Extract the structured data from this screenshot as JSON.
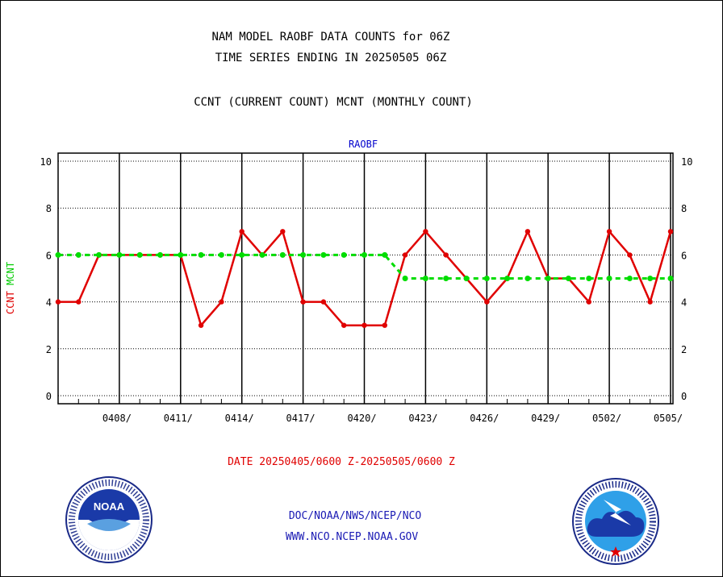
{
  "header": {
    "line1": "NAM MODEL RAOBF DATA COUNTS for 06Z",
    "line2": "TIME SERIES ENDING IN 20250505 06Z",
    "line3": "CCNT (CURRENT COUNT) MCNT (MONTHLY COUNT)"
  },
  "footer": {
    "date_range": "DATE 20250405/0600 Z-20250505/0600 Z",
    "credit_line1": "DOC/NOAA/NWS/NCEP/NCO",
    "credit_line2": "WWW.NCO.NCEP.NOAA.GOV",
    "logo_left": "NOAA",
    "logo_left_ring": "NATIONAL OCEANIC AND ATMOSPHERIC ADMINISTRATION · U.S. DEPARTMENT OF COMMERCE",
    "logo_right_ring": "NATIONAL WEATHER SERVICE"
  },
  "chart_data": {
    "type": "line",
    "panel_label": "RAOBF",
    "ylabel_ccnt": "CCNT",
    "ylabel_mcnt": "MCNT",
    "ylim": [
      0,
      10
    ],
    "yticks": [
      0,
      2,
      4,
      6,
      8,
      10
    ],
    "ytick_labels": [
      "0",
      "2",
      "4",
      "6",
      "8",
      "10"
    ],
    "xlabels": [
      "0408/",
      "0411/",
      "0414/",
      "0417/",
      "0420/",
      "0423/",
      "0426/",
      "0429/",
      "0502/",
      "0505/"
    ],
    "x_days": [
      "0405",
      "0406",
      "0407",
      "0408",
      "0409",
      "0410",
      "0411",
      "0412",
      "0413",
      "0414",
      "0415",
      "0416",
      "0417",
      "0418",
      "0419",
      "0420",
      "0421",
      "0422",
      "0423",
      "0424",
      "0425",
      "0426",
      "0427",
      "0428",
      "0429",
      "0430",
      "0501",
      "0502",
      "0503",
      "0504",
      "0505"
    ],
    "grid": true,
    "series": [
      {
        "name": "CCNT",
        "color": "#e00000",
        "style": "solid",
        "values": [
          4,
          4,
          6,
          6,
          6,
          6,
          6,
          3,
          4,
          7,
          6,
          7,
          4,
          4,
          3,
          3,
          3,
          6,
          7,
          6,
          5,
          4,
          5,
          7,
          5,
          5,
          4,
          7,
          6,
          4,
          7
        ]
      },
      {
        "name": "MCNT",
        "color": "#00dd00",
        "style": "dashed",
        "values": [
          6,
          6,
          6,
          6,
          6,
          6,
          6,
          6,
          6,
          6,
          6,
          6,
          6,
          6,
          6,
          6,
          6,
          5,
          5,
          5,
          5,
          5,
          5,
          5,
          5,
          5,
          5,
          5,
          5,
          5,
          5
        ]
      }
    ]
  }
}
